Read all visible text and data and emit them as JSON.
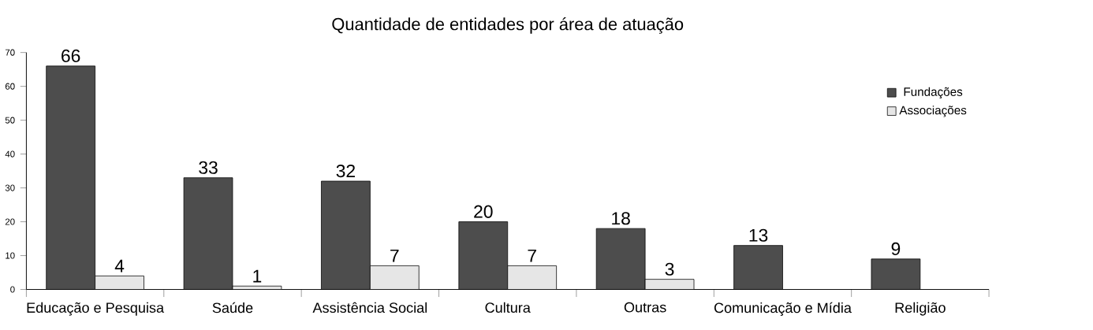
{
  "chart_data": {
    "type": "bar",
    "title": "Quantidade de entidades por área de atuação",
    "categories": [
      "Educação e Pesquisa",
      "Saúde",
      "Assistência Social",
      "Cultura",
      "Outras",
      "Comunicação e Mídia",
      "Religião"
    ],
    "series": [
      {
        "name": "Fundações",
        "color": "#4d4d4d",
        "values": [
          66,
          33,
          32,
          20,
          18,
          13,
          9
        ]
      },
      {
        "name": "Associações",
        "color": "#e6e6e6",
        "values": [
          4,
          1,
          7,
          7,
          3,
          null,
          null
        ]
      }
    ],
    "ylim": [
      0,
      70
    ],
    "yticks": [
      0,
      10,
      20,
      30,
      40,
      50,
      60,
      70
    ],
    "data_labels": true,
    "legend": "top right"
  }
}
